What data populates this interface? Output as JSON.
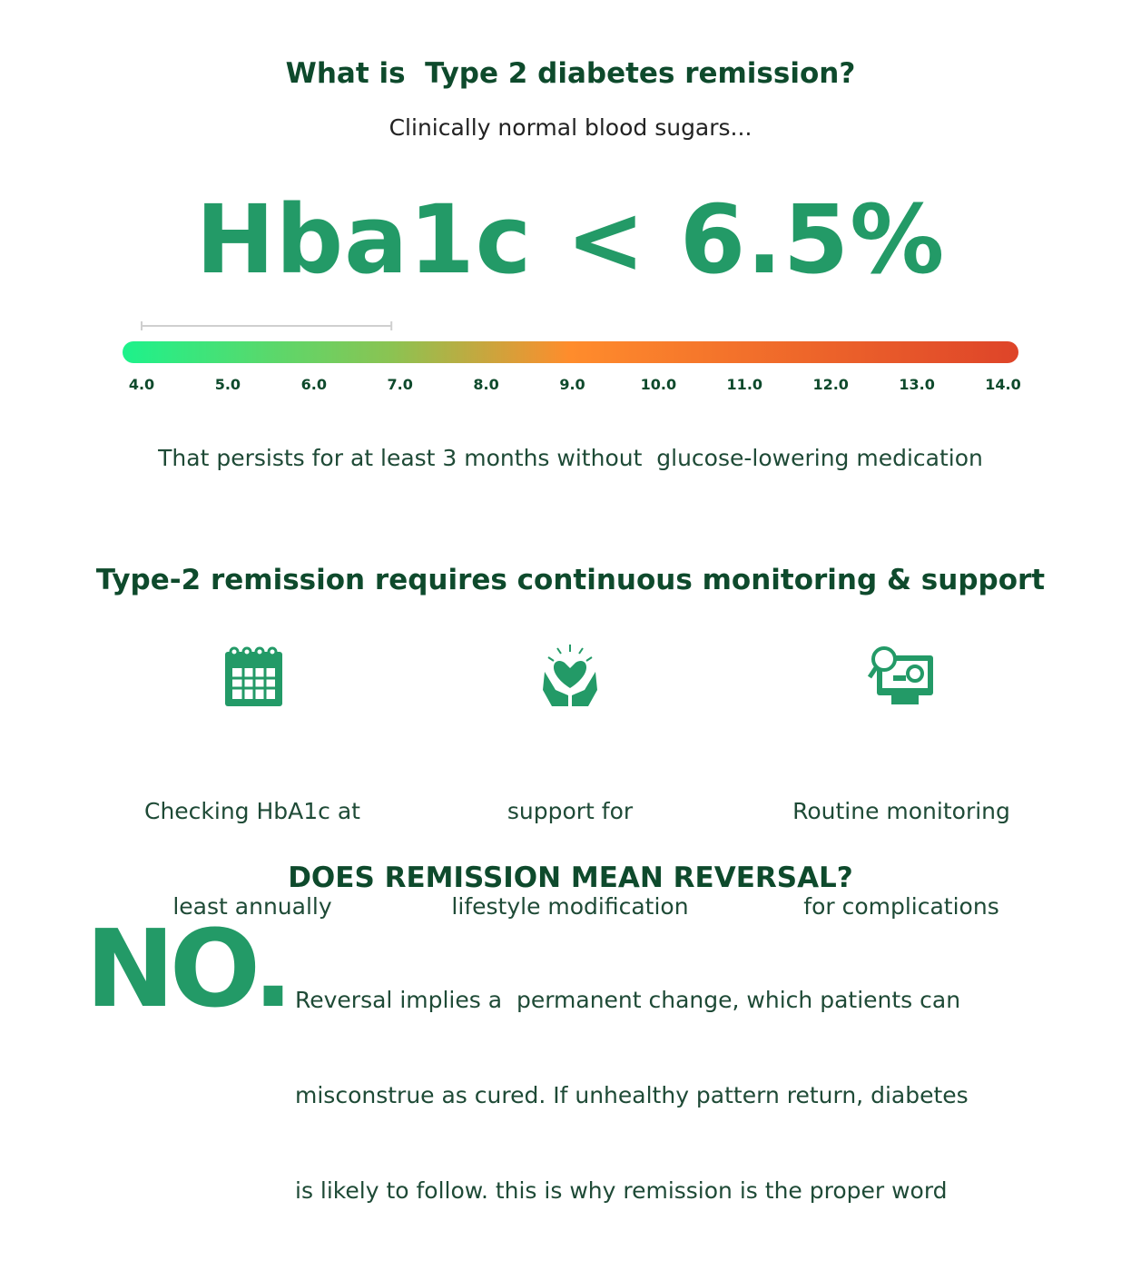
{
  "header": {
    "title": "What is  Type 2 diabetes remission?",
    "subtitle": "Clinically normal blood sugars..."
  },
  "criterion": "Hba1c < 6.5%",
  "scale": {
    "range": [
      4,
      14
    ],
    "ticks": [
      {
        "value": 4,
        "label": "4.0"
      },
      {
        "value": 5,
        "label": "5.0"
      },
      {
        "value": 6,
        "label": "6.0"
      },
      {
        "value": 7,
        "label": "7.0"
      },
      {
        "value": 8,
        "label": "8.0"
      },
      {
        "value": 9,
        "label": "9.0"
      },
      {
        "value": 10,
        "label": "10.0"
      },
      {
        "value": 11,
        "label": "11.0"
      },
      {
        "value": 12,
        "label": "12.0"
      },
      {
        "value": 13,
        "label": "13.0"
      },
      {
        "value": 14,
        "label": "14.0"
      }
    ],
    "bracket": [
      4.0,
      6.9
    ]
  },
  "persistence": "That persists for at least 3 months without  glucose-lowering medication",
  "support": {
    "title": "Type-2 remission requires continuous monitoring & support",
    "items": [
      {
        "lines": [
          "Checking HbA1c at",
          "least annually"
        ]
      },
      {
        "lines": [
          "support for",
          "lifestyle modification"
        ]
      },
      {
        "lines": [
          "Routine monitoring",
          "for complications"
        ]
      }
    ]
  },
  "reversal": {
    "title": "DOES REMISSION MEAN REVERSAL?",
    "answer": "NO.",
    "lines": [
      "Reversal implies a  permanent change, which patients can",
      "misconstrue as cured. If unhealthy pattern return, diabetes",
      "is likely to follow. this is why remission is the proper word"
    ]
  }
}
